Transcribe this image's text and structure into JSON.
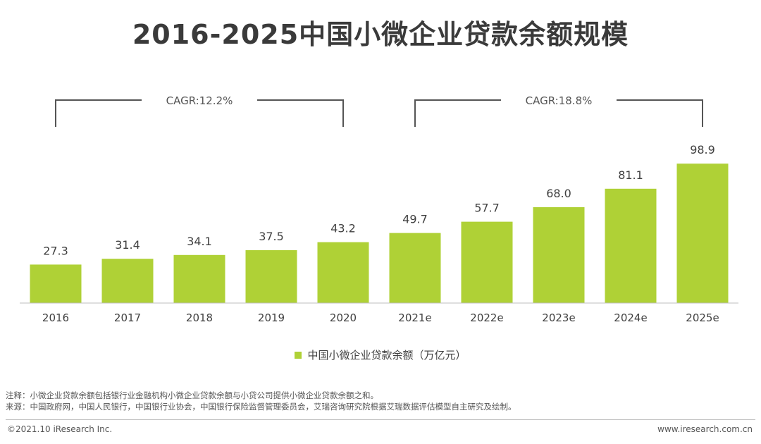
{
  "title": "2016-2025中国小微企业贷款余额规模",
  "chart_data": {
    "type": "bar",
    "categories": [
      "2016",
      "2017",
      "2018",
      "2019",
      "2020",
      "2021e",
      "2022e",
      "2023e",
      "2024e",
      "2025e"
    ],
    "values": [
      27.3,
      31.4,
      34.1,
      37.5,
      43.2,
      49.7,
      57.7,
      68.0,
      81.1,
      98.9
    ],
    "value_labels": [
      "27.3",
      "31.4",
      "34.1",
      "37.5",
      "43.2",
      "49.7",
      "57.7",
      "68.0",
      "81.1",
      "98.9"
    ],
    "series_name": "中国小微企业贷款余额（万亿元）",
    "color": "#afd136",
    "ylim": [
      0,
      100
    ],
    "annotations": [
      {
        "text": "CAGR:12.2%",
        "from_index": 0,
        "to_index": 4
      },
      {
        "text": "CAGR:18.8%",
        "from_index": 5,
        "to_index": 9
      }
    ],
    "legend_position": "bottom-center"
  },
  "legend": {
    "label": "中国小微企业贷款余额（万亿元）"
  },
  "notes": {
    "note": "注释：小微企业贷款余额包括银行业金融机构小微企业贷款余额与小贷公司提供小微企业贷款余额之和。",
    "source": "来源：中国政府网，中国人民银行，中国银行业协会，中国银行保险监督管理委员会，艾瑞咨询研究院根据艾瑞数据评估模型自主研究及绘制。"
  },
  "footer": {
    "copyright": "©2021.10 iResearch Inc.",
    "website": "www.iresearch.com.cn"
  }
}
